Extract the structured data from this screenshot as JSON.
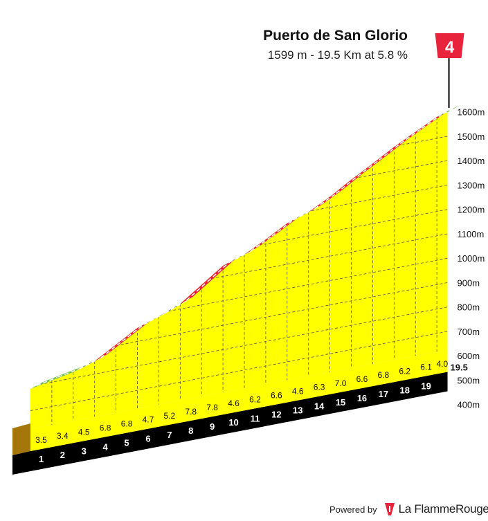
{
  "title": "Puerto de San Glorio",
  "subtitle": "1599 m - 19.5 Km at 5.8 %",
  "category": "4",
  "footer": {
    "powered_by": "Powered by",
    "brand": "La FlammeRouge"
  },
  "colors": {
    "fill": "#ffff00",
    "easy": "#6abf45",
    "moderate": "#1d5f86",
    "hard": "#e8233c",
    "base": "#a5770a",
    "strip": "#000000",
    "flag": "#e8233c"
  },
  "chart_data": {
    "type": "area",
    "title": "Puerto de San Glorio",
    "subtitle": "1599 m - 19.5 Km at 5.8 %",
    "x_unit": "km",
    "y_unit": "m",
    "ylim": [
      300,
      1600
    ],
    "xlim": [
      0,
      19.5
    ],
    "y_ticks": [
      "400m",
      "500m",
      "600m",
      "700m",
      "800m",
      "900m",
      "1000m",
      "1100m",
      "1200m",
      "1300m",
      "1400m",
      "1500m",
      "1600m"
    ],
    "km_labels": [
      "1",
      "2",
      "3",
      "4",
      "5",
      "6",
      "7",
      "8",
      "9",
      "10",
      "11",
      "12",
      "13",
      "14",
      "15",
      "16",
      "17",
      "18",
      "19"
    ],
    "end_label": "19.5",
    "segments": [
      {
        "km": "1",
        "gradient": 3.5,
        "color": "easy"
      },
      {
        "km": "2",
        "gradient": 3.4,
        "color": "easy"
      },
      {
        "km": "3",
        "gradient": 4.5,
        "color": "moderate"
      },
      {
        "km": "4",
        "gradient": 6.8,
        "color": "hard"
      },
      {
        "km": "5",
        "gradient": 6.8,
        "color": "hard"
      },
      {
        "km": "6",
        "gradient": 4.7,
        "color": "moderate"
      },
      {
        "km": "7",
        "gradient": 5.2,
        "color": "moderate"
      },
      {
        "km": "8",
        "gradient": 7.8,
        "color": "hard"
      },
      {
        "km": "9",
        "gradient": 7.8,
        "color": "hard"
      },
      {
        "km": "10",
        "gradient": 4.6,
        "color": "moderate"
      },
      {
        "km": "11",
        "gradient": 6.2,
        "color": "hard"
      },
      {
        "km": "12",
        "gradient": 6.6,
        "color": "hard"
      },
      {
        "km": "13",
        "gradient": 4.6,
        "color": "moderate"
      },
      {
        "km": "14",
        "gradient": 6.3,
        "color": "hard"
      },
      {
        "km": "15",
        "gradient": 7.0,
        "color": "hard"
      },
      {
        "km": "16",
        "gradient": 6.6,
        "color": "hard"
      },
      {
        "km": "17",
        "gradient": 6.8,
        "color": "hard"
      },
      {
        "km": "18",
        "gradient": 6.2,
        "color": "hard"
      },
      {
        "km": "19",
        "gradient": 6.1,
        "color": "hard"
      },
      {
        "km": "19.5",
        "gradient": 4.0,
        "color": "easy"
      }
    ]
  }
}
